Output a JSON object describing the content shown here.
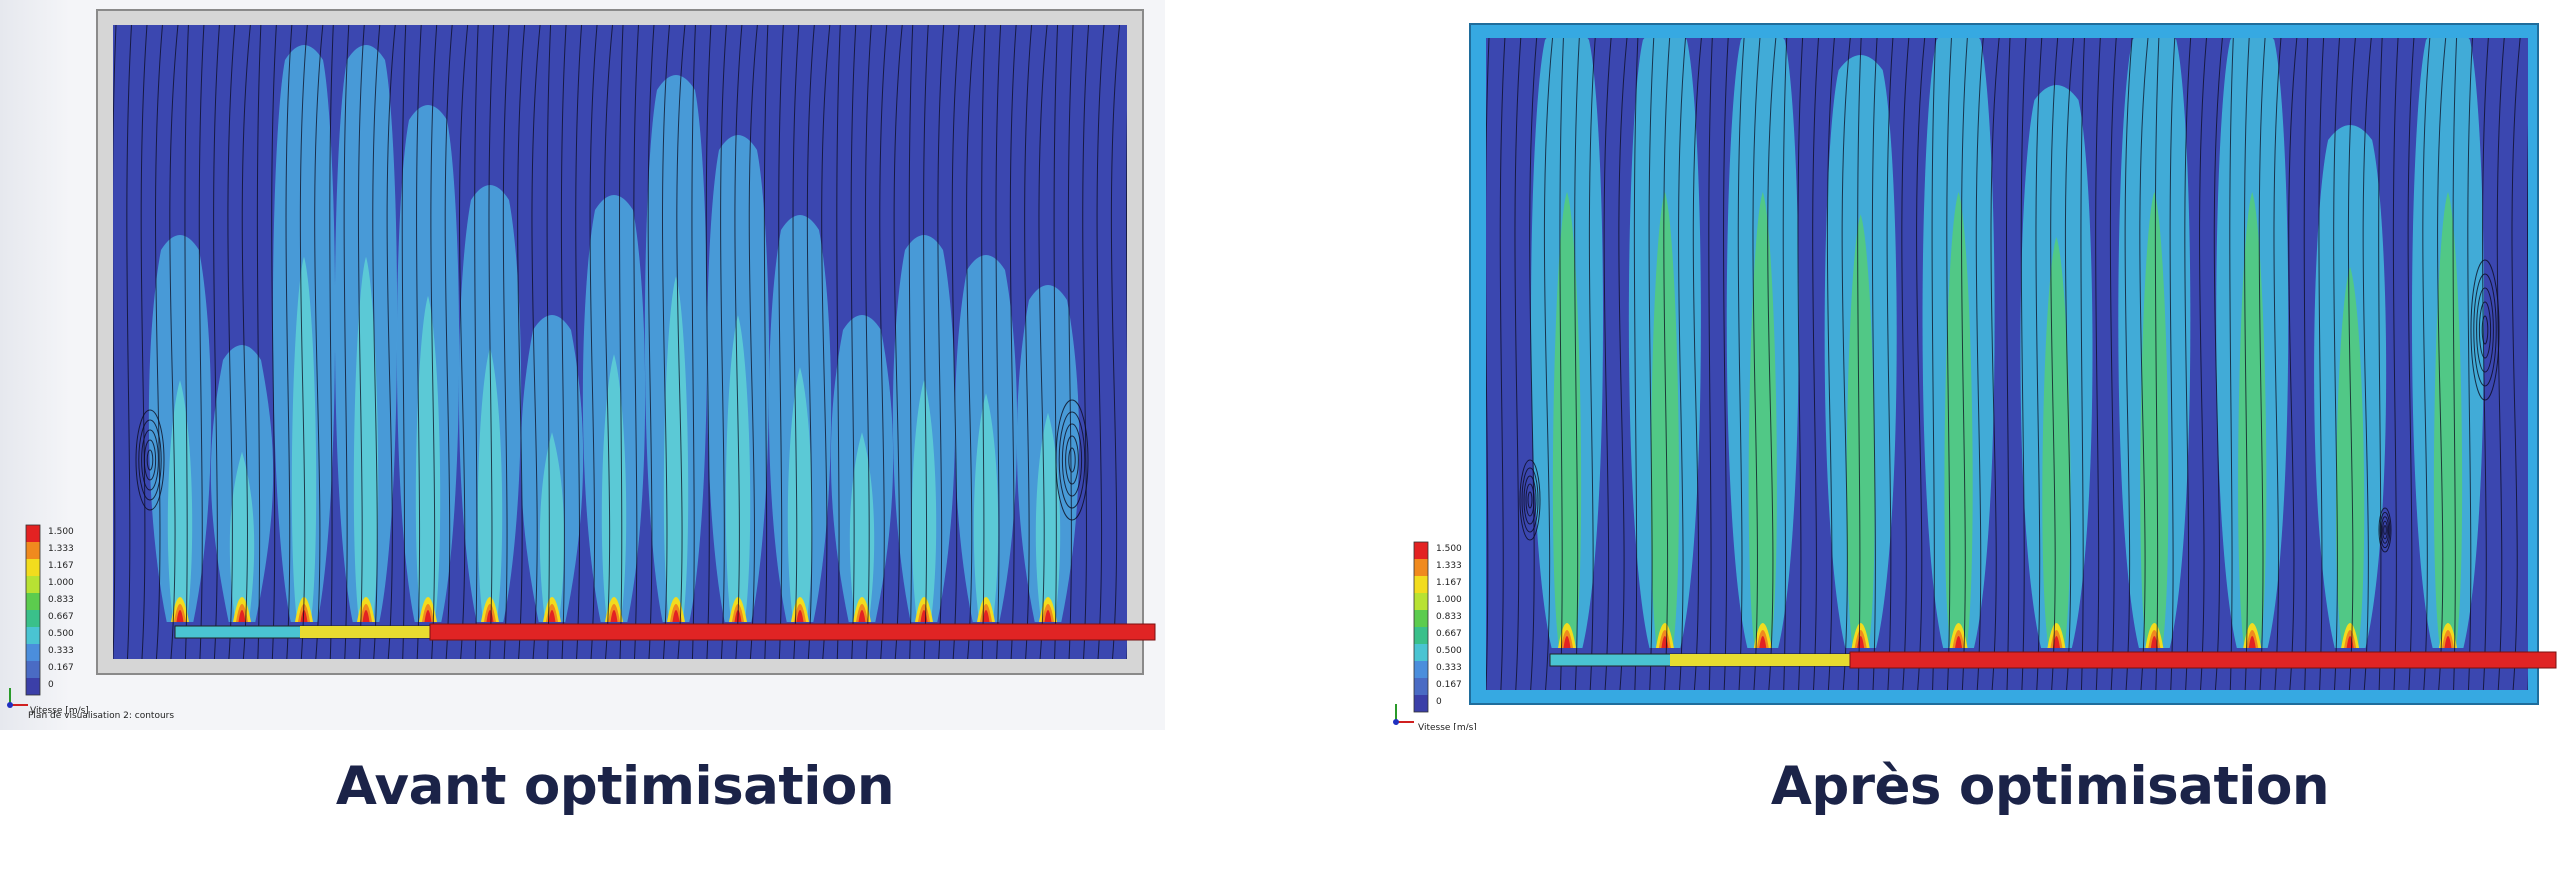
{
  "panels": [
    {
      "id": "before",
      "caption": "Avant optimisation",
      "plot_label": "Plan de visualisation 2: contours",
      "legend": {
        "title": "Vitesse [m/s]",
        "ticks": [
          "1.500",
          "1.333",
          "1.167",
          "1.000",
          "0.833",
          "0.667",
          "0.500",
          "0.333",
          "0.167",
          "0"
        ],
        "colors": [
          "#e32222",
          "#f08a1e",
          "#f2dc1e",
          "#b8e233",
          "#5ccc4e",
          "#3ac08a",
          "#4ac4d2",
          "#4b8edc",
          "#4a6bc4",
          "#3b3fa8"
        ]
      },
      "nozzle_count": 15,
      "colors": {
        "frame": "#d4d4d4",
        "fluid": "#3b47b0",
        "plume": "#4aa3dc",
        "core": "#5fd1d6"
      }
    },
    {
      "id": "after",
      "caption": "Après optimisation",
      "plot_label": "",
      "legend": {
        "title": "Vitesse [m/s]",
        "ticks": [
          "1.500",
          "1.333",
          "1.167",
          "1.000",
          "0.833",
          "0.667",
          "0.500",
          "0.333",
          "0.167",
          "0"
        ],
        "colors": [
          "#e32222",
          "#f08a1e",
          "#f2dc1e",
          "#b8e233",
          "#5ccc4e",
          "#3ac08a",
          "#4ac4d2",
          "#4b8edc",
          "#4a6bc4",
          "#3b3fa8"
        ]
      },
      "nozzle_count": 10,
      "colors": {
        "frame": "#36a9e2",
        "fluid": "#3b47b0",
        "plume": "#43b6dc",
        "core": "#55cc78"
      }
    }
  ]
}
